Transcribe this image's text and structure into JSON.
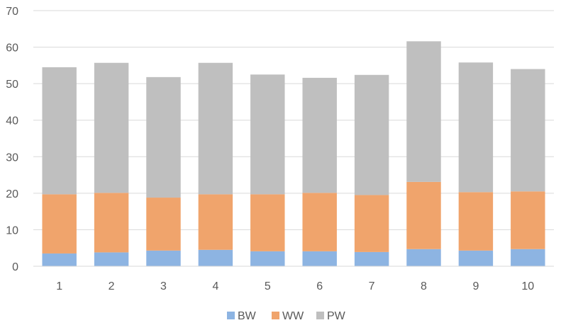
{
  "chart_data": {
    "type": "bar",
    "stacked": true,
    "categories": [
      "1",
      "2",
      "3",
      "4",
      "5",
      "6",
      "7",
      "8",
      "9",
      "10"
    ],
    "series": [
      {
        "name": "BW",
        "color": "#8DB4E2",
        "values": [
          3.5,
          3.8,
          4.3,
          4.5,
          4.1,
          4.1,
          3.9,
          4.7,
          4.3,
          4.7
        ]
      },
      {
        "name": "WW",
        "color": "#F0A46C",
        "values": [
          16.2,
          16.3,
          14.5,
          15.2,
          15.6,
          16.0,
          15.6,
          18.4,
          16.0,
          15.8
        ]
      },
      {
        "name": "PW",
        "color": "#BFBFBF",
        "values": [
          34.8,
          35.6,
          33.0,
          36.0,
          32.8,
          31.5,
          32.9,
          38.5,
          35.5,
          33.5
        ]
      }
    ],
    "ylim": [
      0,
      70
    ],
    "yticks": [
      "0",
      "10",
      "20",
      "30",
      "40",
      "50",
      "60",
      "70"
    ],
    "grid": true,
    "legend_position": "bottom"
  }
}
